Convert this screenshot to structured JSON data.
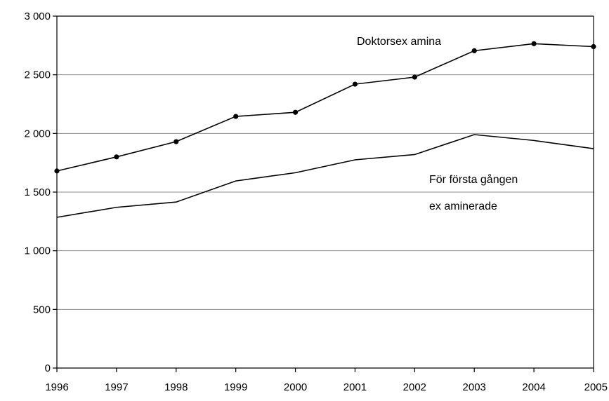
{
  "chart_data": {
    "type": "line",
    "title": "",
    "xlabel": "",
    "ylabel": "",
    "categories": [
      "1996",
      "1997",
      "1998",
      "1999",
      "2000",
      "2001",
      "2002",
      "2003",
      "2004",
      "2005"
    ],
    "ylim": [
      0,
      3000
    ],
    "yticks": [
      0,
      500,
      1000,
      1500,
      2000,
      2500,
      3000
    ],
    "ytick_labels": [
      "0",
      "500",
      "1 000",
      "1 500",
      "2 000",
      "2 500",
      "3 000"
    ],
    "grid": true,
    "series": [
      {
        "name": "Doktorsex amina",
        "values": [
          1680,
          1800,
          1930,
          2145,
          2180,
          2420,
          2480,
          2705,
          2765,
          2740
        ],
        "markers": true
      },
      {
        "name": "För första gången ex aminerade",
        "values": [
          1285,
          1370,
          1415,
          1595,
          1665,
          1775,
          1820,
          1990,
          1940,
          1870
        ],
        "markers": false
      }
    ],
    "annotations": [
      {
        "text": "Doktorsex amina",
        "series": 0
      },
      {
        "text": "För första gången",
        "series": 1
      },
      {
        "text": "ex aminerade",
        "series": 1
      }
    ]
  }
}
